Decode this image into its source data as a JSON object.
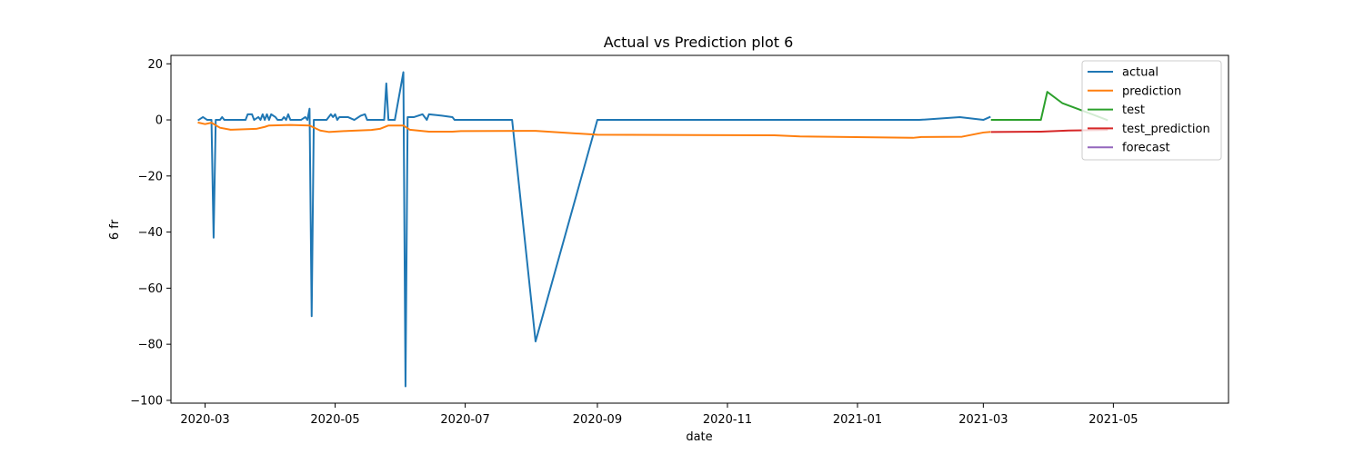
{
  "chart_data": {
    "type": "line",
    "title": "Actual vs Prediction plot 6",
    "xlabel": "date",
    "ylabel": "6 fr",
    "xlim": [
      "2020-02-14",
      "2021-06-24"
    ],
    "ylim": [
      -101,
      23
    ],
    "x_ticks": [
      "2020-03",
      "2020-05",
      "2020-07",
      "2020-09",
      "2020-11",
      "2021-01",
      "2021-03",
      "2021-05"
    ],
    "y_ticks": [
      20,
      0,
      -20,
      -40,
      -60,
      -80,
      -100
    ],
    "grid": false,
    "legend_position": "top-right",
    "series": [
      {
        "name": "actual",
        "color": "#1f77b4",
        "points": [
          [
            "2020-02-27",
            0
          ],
          [
            "2020-02-29",
            1
          ],
          [
            "2020-03-02",
            0
          ],
          [
            "2020-03-04",
            0
          ],
          [
            "2020-03-05",
            -42
          ],
          [
            "2020-03-06",
            0
          ],
          [
            "2020-03-08",
            0
          ],
          [
            "2020-03-09",
            1
          ],
          [
            "2020-03-10",
            0
          ],
          [
            "2020-03-15",
            0
          ],
          [
            "2020-03-20",
            0
          ],
          [
            "2020-03-21",
            2
          ],
          [
            "2020-03-23",
            2
          ],
          [
            "2020-03-24",
            0
          ],
          [
            "2020-03-26",
            1
          ],
          [
            "2020-03-27",
            0
          ],
          [
            "2020-03-28",
            2
          ],
          [
            "2020-03-29",
            0
          ],
          [
            "2020-03-30",
            2
          ],
          [
            "2020-03-31",
            0
          ],
          [
            "2020-04-01",
            2
          ],
          [
            "2020-04-03",
            1
          ],
          [
            "2020-04-04",
            0
          ],
          [
            "2020-04-06",
            0
          ],
          [
            "2020-04-07",
            1
          ],
          [
            "2020-04-08",
            0
          ],
          [
            "2020-04-09",
            2
          ],
          [
            "2020-04-10",
            0
          ],
          [
            "2020-04-15",
            0
          ],
          [
            "2020-04-17",
            1
          ],
          [
            "2020-04-18",
            0
          ],
          [
            "2020-04-19",
            4
          ],
          [
            "2020-04-20",
            -70
          ],
          [
            "2020-04-21",
            0
          ],
          [
            "2020-04-27",
            0
          ],
          [
            "2020-04-29",
            2
          ],
          [
            "2020-04-30",
            1
          ],
          [
            "2020-05-01",
            2
          ],
          [
            "2020-05-02",
            0
          ],
          [
            "2020-05-03",
            1
          ],
          [
            "2020-05-07",
            1
          ],
          [
            "2020-05-10",
            0
          ],
          [
            "2020-05-13",
            1.5
          ],
          [
            "2020-05-15",
            2
          ],
          [
            "2020-05-16",
            0
          ],
          [
            "2020-05-24",
            0
          ],
          [
            "2020-05-25",
            13
          ],
          [
            "2020-05-26",
            0
          ],
          [
            "2020-05-29",
            0
          ],
          [
            "2020-06-02",
            17
          ],
          [
            "2020-06-03",
            -95
          ],
          [
            "2020-06-04",
            1
          ],
          [
            "2020-06-07",
            1
          ],
          [
            "2020-06-11",
            2
          ],
          [
            "2020-06-13",
            0
          ],
          [
            "2020-06-14",
            2
          ],
          [
            "2020-06-20",
            1.5
          ],
          [
            "2020-06-25",
            1
          ],
          [
            "2020-06-26",
            0
          ],
          [
            "2020-07-23",
            0
          ],
          [
            "2020-08-03",
            -79
          ],
          [
            "2020-09-01",
            0
          ],
          [
            "2021-01-30",
            0
          ],
          [
            "2021-02-18",
            1
          ],
          [
            "2021-03-01",
            0
          ],
          [
            "2021-03-04",
            1
          ]
        ]
      },
      {
        "name": "prediction",
        "color": "#ff7f0e",
        "points": [
          [
            "2020-02-27",
            -1
          ],
          [
            "2020-03-01",
            -1.5
          ],
          [
            "2020-03-04",
            -1
          ],
          [
            "2020-03-08",
            -2.8
          ],
          [
            "2020-03-13",
            -3.5
          ],
          [
            "2020-03-25",
            -3.2
          ],
          [
            "2020-03-29",
            -2.5
          ],
          [
            "2020-03-31",
            -2
          ],
          [
            "2020-04-10",
            -1.8
          ],
          [
            "2020-04-19",
            -2
          ],
          [
            "2020-04-24",
            -3.8
          ],
          [
            "2020-04-28",
            -4.3
          ],
          [
            "2020-05-05",
            -4
          ],
          [
            "2020-05-18",
            -3.6
          ],
          [
            "2020-05-22",
            -3.2
          ],
          [
            "2020-05-26",
            -2
          ],
          [
            "2020-06-02",
            -2
          ],
          [
            "2020-06-05",
            -3.5
          ],
          [
            "2020-06-14",
            -4.2
          ],
          [
            "2020-06-25",
            -4.2
          ],
          [
            "2020-06-29",
            -4
          ],
          [
            "2020-07-29",
            -3.9
          ],
          [
            "2020-08-03",
            -3.9
          ],
          [
            "2020-09-01",
            -5.3
          ],
          [
            "2020-11-23",
            -5.5
          ],
          [
            "2020-12-05",
            -5.9
          ],
          [
            "2021-01-27",
            -6.4
          ],
          [
            "2021-01-31",
            -6.1
          ],
          [
            "2021-02-19",
            -6
          ],
          [
            "2021-03-01",
            -4.5
          ],
          [
            "2021-03-04",
            -4.3
          ]
        ]
      },
      {
        "name": "test",
        "color": "#2ca02c",
        "points": [
          [
            "2021-03-05",
            0
          ],
          [
            "2021-03-28",
            0
          ],
          [
            "2021-03-31",
            10
          ],
          [
            "2021-04-07",
            6
          ],
          [
            "2021-04-14",
            4
          ],
          [
            "2021-04-21",
            2
          ],
          [
            "2021-04-28",
            0
          ]
        ]
      },
      {
        "name": "test_prediction",
        "color": "#d62728",
        "points": [
          [
            "2021-03-05",
            -4.3
          ],
          [
            "2021-03-28",
            -4.2
          ],
          [
            "2021-04-10",
            -3.8
          ],
          [
            "2021-04-28",
            -3.6
          ]
        ]
      },
      {
        "name": "forecast",
        "color": "#9467bd",
        "points": []
      }
    ]
  }
}
